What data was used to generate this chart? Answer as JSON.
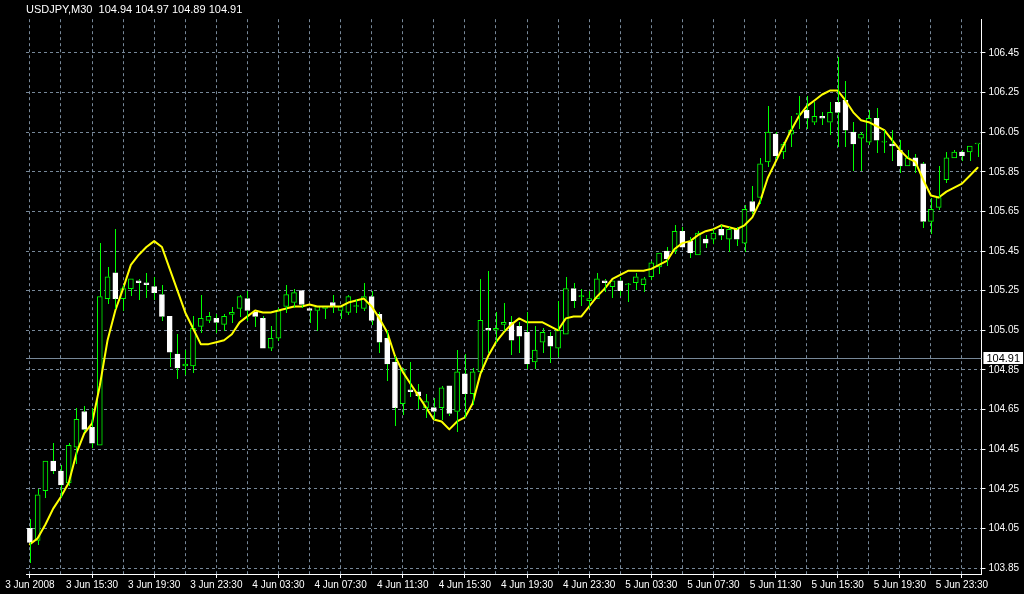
{
  "chart_data": {
    "type": "candlestick",
    "title": "USDJPY,M30  104.94 104.97 104.89 104.91",
    "categories": [
      "3 Jun 2008",
      null,
      null,
      null,
      null,
      null,
      null,
      null,
      "3 Jun 15:30",
      null,
      null,
      null,
      null,
      null,
      null,
      null,
      "3 Jun 19:30",
      null,
      null,
      null,
      null,
      null,
      null,
      null,
      "3 Jun 23:30",
      null,
      null,
      null,
      null,
      null,
      null,
      null,
      "4 Jun 03:30",
      null,
      null,
      null,
      null,
      null,
      null,
      null,
      "4 Jun 07:30",
      null,
      null,
      null,
      null,
      null,
      null,
      null,
      "4 Jun 11:30",
      null,
      null,
      null,
      null,
      null,
      null,
      null,
      "4 Jun 15:30",
      null,
      null,
      null,
      null,
      null,
      null,
      null,
      "4 Jun 19:30",
      null,
      null,
      null,
      null,
      null,
      null,
      null,
      "4 Jun 23:30",
      null,
      null,
      null,
      null,
      null,
      null,
      null,
      "5 Jun 03:30",
      null,
      null,
      null,
      null,
      null,
      null,
      null,
      "5 Jun 07:30",
      null,
      null,
      null,
      null,
      null,
      null,
      null,
      "5 Jun 11:30",
      null,
      null,
      null,
      null,
      null,
      null,
      null,
      "5 Jun 15:30",
      null,
      null,
      null,
      null,
      null,
      null,
      null,
      "5 Jun 19:30",
      null,
      null,
      null,
      null,
      null,
      null,
      null,
      "5 Jun 23:30",
      null,
      null
    ],
    "color": "#00ff00",
    "colors": [
      "#ffffff",
      "#00ff00",
      "#00ff00",
      "#ffffff",
      "#ffffff",
      "#00ff00",
      "#00ff00",
      "#ffffff",
      "#ffffff",
      "#00ff00",
      "#00ff00",
      "#ffffff",
      "#00ff00",
      "#00ff00",
      "#ffffff",
      "#ffffff",
      "#ffffff",
      "#ffffff",
      "#ffffff",
      "#ffffff",
      "#00ff00",
      "#00ff00",
      "#00ff00",
      "#00ff00",
      "#ffffff",
      "#00ff00",
      "#00ff00",
      "#00ff00",
      "#ffffff",
      "#ffffff",
      "#ffffff",
      "#00ff00",
      "#00ff00",
      "#00ff00",
      "#00ff00",
      "#ffffff",
      "#ffffff",
      "#00ff00",
      "#00ff00",
      "#ffffff",
      "#00ff00",
      "#00ff00",
      "#00ff00",
      "#00ff00",
      "#ffffff",
      "#ffffff",
      "#ffffff",
      "#ffffff",
      "#00ff00",
      "#ffffff",
      "#ffffff",
      "#00ff00",
      "#ffffff",
      "#00ff00",
      "#ffffff",
      "#00ff00",
      "#ffffff",
      "#00ff00",
      "#00ff00",
      "#ffffff",
      "#00ff00",
      "#00ff00",
      "#ffffff",
      "#ffffff",
      "#ffffff",
      "#00ff00",
      "#00ff00",
      "#ffffff",
      "#00ff00",
      "#00ff00",
      "#ffffff",
      "#00ff00",
      "#00ff00",
      "#00ff00",
      "#ffffff",
      "#00ff00",
      "#ffffff",
      "#00ff00",
      "#00ff00",
      "#00ff00",
      "#00ff00",
      "#00ff00",
      "#ffffff",
      "#00ff00",
      "#ffffff",
      "#ffffff",
      "#00ff00",
      "#ffffff",
      "#00ff00",
      "#ffffff",
      "#00ff00",
      "#ffffff",
      "#00ff00",
      "#ffffff",
      "#00ff00",
      "#00ff00",
      "#ffffff",
      "#00ff00",
      "#00ff00",
      "#00ff00",
      "#ffffff",
      "#00ff00",
      "#ffffff",
      "#00ff00",
      "#ffffff",
      "#ffffff",
      "#ffffff",
      "#00ff00",
      "#00ff00",
      "#ffffff",
      "#00ff00",
      "#ffffff",
      "#ffffff",
      "#00ff00",
      "#ffffff",
      "#ffffff",
      "#00ff00",
      "#00ff00",
      "#00ff00",
      "#00ff00",
      "#ffffff",
      "#00ff00",
      "#00ff00"
    ],
    "ohlc": [
      [
        104.05,
        104.1,
        103.88,
        103.98
      ],
      [
        103.99,
        104.25,
        103.97,
        104.22
      ],
      [
        104.24,
        104.39,
        104.21,
        104.39
      ],
      [
        104.39,
        104.48,
        104.33,
        104.34
      ],
      [
        104.34,
        104.37,
        104.21,
        104.27
      ],
      [
        104.28,
        104.48,
        104.27,
        104.47
      ],
      [
        104.46,
        104.66,
        104.38,
        104.6
      ],
      [
        104.64,
        104.67,
        104.54,
        104.55
      ],
      [
        104.56,
        104.66,
        104.46,
        104.48
      ],
      [
        104.47,
        105.49,
        104.47,
        105.22
      ],
      [
        105.21,
        105.37,
        105.19,
        105.32
      ],
      [
        105.34,
        105.56,
        105.16,
        105.21
      ],
      [
        105.21,
        105.28,
        105.15,
        105.26
      ],
      [
        105.26,
        105.31,
        105.23,
        105.31
      ],
      [
        105.3,
        105.31,
        105.21,
        105.29
      ],
      [
        105.29,
        105.34,
        105.22,
        105.28
      ],
      [
        105.27,
        105.32,
        105.21,
        105.24
      ],
      [
        105.23,
        105.28,
        105.1,
        105.12
      ],
      [
        105.12,
        105.12,
        104.87,
        104.94
      ],
      [
        104.93,
        105.03,
        104.81,
        104.86
      ],
      [
        104.87,
        104.95,
        104.83,
        104.88
      ],
      [
        104.87,
        105.12,
        104.84,
        105.06
      ],
      [
        105.07,
        105.23,
        105.04,
        105.11
      ],
      [
        105.1,
        105.14,
        105.09,
        105.12
      ],
      [
        105.11,
        105.13,
        105.04,
        105.09
      ],
      [
        105.08,
        105.13,
        105.05,
        105.12
      ],
      [
        105.13,
        105.17,
        105.09,
        105.14
      ],
      [
        105.16,
        105.23,
        105.12,
        105.22
      ],
      [
        105.21,
        105.25,
        105.1,
        105.15
      ],
      [
        105.14,
        105.14,
        105.07,
        105.12
      ],
      [
        105.11,
        105.12,
        104.96,
        104.96
      ],
      [
        104.96,
        105.07,
        104.95,
        105.01
      ],
      [
        105.01,
        105.16,
        105.0,
        105.15
      ],
      [
        105.17,
        105.28,
        105.14,
        105.23
      ],
      [
        105.19,
        105.26,
        105.17,
        105.24
      ],
      [
        105.25,
        105.25,
        105.17,
        105.18
      ],
      [
        105.16,
        105.16,
        105.09,
        105.15
      ],
      [
        105.15,
        105.17,
        105.05,
        105.17
      ],
      [
        105.16,
        105.17,
        105.11,
        105.17
      ],
      [
        105.19,
        105.23,
        105.14,
        105.17
      ],
      [
        105.15,
        105.17,
        105.11,
        105.17
      ],
      [
        105.14,
        105.23,
        105.13,
        105.22
      ],
      [
        105.17,
        105.21,
        105.14,
        105.17
      ],
      [
        105.16,
        105.29,
        105.15,
        105.22
      ],
      [
        105.22,
        105.25,
        105.08,
        105.1
      ],
      [
        105.13,
        105.14,
        104.94,
        104.99
      ],
      [
        105.01,
        105.05,
        104.8,
        104.88
      ],
      [
        104.89,
        104.92,
        104.57,
        104.66
      ],
      [
        104.68,
        104.86,
        104.63,
        104.85
      ],
      [
        104.75,
        104.89,
        104.72,
        104.74
      ],
      [
        104.74,
        104.78,
        104.66,
        104.72
      ],
      [
        104.66,
        104.73,
        104.61,
        104.69
      ],
      [
        104.66,
        104.71,
        104.6,
        104.64
      ],
      [
        104.66,
        104.77,
        104.6,
        104.76
      ],
      [
        104.77,
        104.77,
        104.62,
        104.63
      ],
      [
        104.64,
        104.95,
        104.54,
        104.84
      ],
      [
        104.83,
        104.93,
        104.61,
        104.73
      ],
      [
        104.73,
        104.86,
        104.68,
        104.84
      ],
      [
        104.84,
        105.31,
        104.84,
        105.1
      ],
      [
        105.06,
        105.35,
        104.94,
        105.05
      ],
      [
        105.05,
        105.14,
        104.99,
        105.06
      ],
      [
        105.08,
        105.19,
        105.05,
        105.09
      ],
      [
        105.09,
        105.12,
        104.93,
        105.0
      ],
      [
        105.07,
        105.09,
        104.94,
        105.02
      ],
      [
        105.04,
        105.14,
        104.86,
        104.88
      ],
      [
        104.89,
        105.07,
        104.86,
        104.95
      ],
      [
        104.99,
        105.06,
        104.94,
        105.04
      ],
      [
        105.02,
        105.04,
        104.89,
        104.97
      ],
      [
        104.96,
        105.2,
        104.92,
        105.05
      ],
      [
        105.03,
        105.32,
        105.03,
        105.26
      ],
      [
        105.26,
        105.29,
        105.17,
        105.2
      ],
      [
        105.22,
        105.26,
        105.18,
        105.22
      ],
      [
        105.2,
        105.25,
        105.17,
        105.21
      ],
      [
        105.21,
        105.34,
        105.21,
        105.31
      ],
      [
        105.3,
        105.31,
        105.25,
        105.29
      ],
      [
        105.27,
        105.3,
        105.22,
        105.3
      ],
      [
        105.3,
        105.32,
        105.23,
        105.25
      ],
      [
        105.28,
        105.29,
        105.2,
        105.28
      ],
      [
        105.29,
        105.34,
        105.26,
        105.32
      ],
      [
        105.28,
        105.32,
        105.25,
        105.31
      ],
      [
        105.32,
        105.4,
        105.31,
        105.39
      ],
      [
        105.37,
        105.44,
        105.34,
        105.44
      ],
      [
        105.45,
        105.47,
        105.38,
        105.41
      ],
      [
        105.45,
        105.58,
        105.44,
        105.55
      ],
      [
        105.55,
        105.57,
        105.47,
        105.47
      ],
      [
        105.5,
        105.52,
        105.42,
        105.44
      ],
      [
        105.43,
        105.55,
        105.43,
        105.54
      ],
      [
        105.51,
        105.53,
        105.47,
        105.49
      ],
      [
        105.51,
        105.56,
        105.49,
        105.54
      ],
      [
        105.56,
        105.58,
        105.51,
        105.53
      ],
      [
        105.51,
        105.57,
        105.45,
        105.56
      ],
      [
        105.56,
        105.57,
        105.48,
        105.51
      ],
      [
        105.49,
        105.68,
        105.45,
        105.66
      ],
      [
        105.7,
        105.78,
        105.64,
        105.65
      ],
      [
        105.72,
        105.92,
        105.69,
        105.89
      ],
      [
        105.9,
        106.18,
        105.88,
        106.05
      ],
      [
        106.04,
        106.05,
        105.92,
        105.93
      ],
      [
        105.95,
        106.0,
        105.92,
        105.99
      ],
      [
        106.04,
        106.13,
        105.98,
        106.06
      ],
      [
        106.14,
        106.23,
        106.07,
        106.14
      ],
      [
        106.16,
        106.23,
        106.07,
        106.12
      ],
      [
        106.1,
        106.2,
        106.09,
        106.13
      ],
      [
        106.13,
        106.15,
        106.09,
        106.12
      ],
      [
        106.1,
        106.2,
        106.04,
        106.15
      ],
      [
        106.2,
        106.43,
        105.98,
        106.15
      ],
      [
        106.21,
        106.31,
        105.98,
        106.06
      ],
      [
        106.05,
        106.1,
        105.86,
        105.99
      ],
      [
        106.02,
        106.05,
        105.86,
        106.04
      ],
      [
        106.0,
        106.16,
        105.99,
        106.12
      ],
      [
        106.12,
        106.17,
        105.95,
        106.01
      ],
      [
        106.0,
        106.06,
        105.95,
        106.0
      ],
      [
        105.99,
        106.06,
        105.91,
        105.98
      ],
      [
        105.96,
        106.01,
        105.85,
        105.88
      ],
      [
        105.88,
        105.96,
        105.88,
        105.92
      ],
      [
        105.92,
        105.94,
        105.85,
        105.88
      ],
      [
        105.89,
        105.9,
        105.57,
        105.6
      ],
      [
        105.6,
        105.72,
        105.54,
        105.66
      ],
      [
        105.67,
        105.88,
        105.66,
        105.72
      ],
      [
        105.81,
        105.95,
        105.8,
        105.92
      ],
      [
        105.92,
        105.96,
        105.92,
        105.95
      ],
      [
        105.95,
        105.96,
        105.91,
        105.93
      ],
      [
        105.95,
        105.98,
        105.91,
        105.98
      ],
      [
        105.99,
        105.99,
        105.93,
        105.99
      ]
    ],
    "series": [
      {
        "type": "line",
        "color": "#ffff00",
        "marker": "none",
        "values": [
          103.97,
          104.0,
          104.07,
          104.15,
          104.21,
          104.28,
          104.43,
          104.53,
          104.58,
          104.77,
          105.0,
          105.15,
          105.26,
          105.38,
          105.43,
          105.47,
          105.5,
          105.47,
          105.36,
          105.25,
          105.14,
          105.06,
          104.98,
          104.98,
          104.99,
          105.0,
          105.03,
          105.09,
          105.12,
          105.15,
          105.14,
          105.14,
          105.15,
          105.16,
          105.17,
          105.17,
          105.18,
          105.17,
          105.17,
          105.17,
          105.17,
          105.19,
          105.2,
          105.21,
          105.17,
          105.11,
          105.04,
          104.92,
          104.84,
          104.78,
          104.72,
          104.66,
          104.6,
          104.59,
          104.55,
          104.59,
          104.61,
          104.68,
          104.83,
          104.92,
          104.99,
          105.04,
          105.08,
          105.11,
          105.09,
          105.09,
          105.09,
          105.07,
          105.05,
          105.11,
          105.12,
          105.12,
          105.17,
          105.22,
          105.26,
          105.31,
          105.33,
          105.35,
          105.35,
          105.35,
          105.36,
          105.38,
          105.4,
          105.46,
          105.49,
          105.5,
          105.53,
          105.55,
          105.56,
          105.58,
          105.57,
          105.56,
          105.58,
          105.62,
          105.7,
          105.82,
          105.9,
          105.98,
          106.06,
          106.13,
          106.18,
          106.21,
          106.24,
          106.26,
          106.26,
          106.21,
          106.15,
          106.11,
          106.1,
          106.08,
          106.06,
          106.01,
          105.96,
          105.92,
          105.9,
          105.81,
          105.73,
          105.72,
          105.75,
          105.77,
          105.79,
          105.83,
          105.87
        ]
      }
    ],
    "ylim": [
      103.82,
      106.62
    ],
    "yticks": [
      103.85,
      104.05,
      104.25,
      104.45,
      104.65,
      104.85,
      105.05,
      105.25,
      105.45,
      105.65,
      105.85,
      106.05,
      106.25,
      106.45
    ],
    "grid": true,
    "ref_lines": [
      {
        "axis": "y",
        "value": 104.91,
        "label": "104.91",
        "color": "#778899"
      }
    ]
  }
}
